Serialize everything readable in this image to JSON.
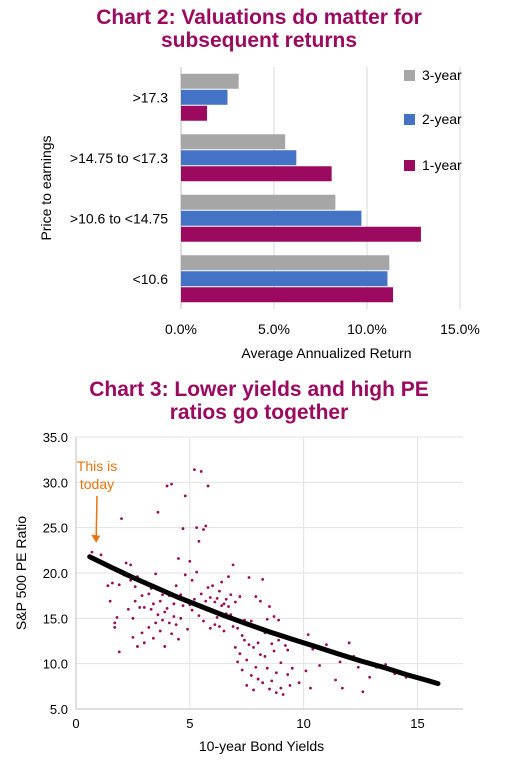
{
  "chart_data": [
    {
      "type": "bar",
      "orientation": "horizontal",
      "title_lines": [
        "Chart 2: Valuations do matter for",
        "subsequent returns"
      ],
      "categories": [
        ">17.3",
        ">14.75 to <17.3",
        ">10.6 to <14.75",
        "<10.6"
      ],
      "series": [
        {
          "name": "3-year",
          "color": "#a6a6a6",
          "values": [
            3.1,
            5.6,
            8.3,
            11.2
          ]
        },
        {
          "name": "2-year",
          "color": "#4472c4",
          "values": [
            2.5,
            6.2,
            9.7,
            11.1
          ]
        },
        {
          "name": "1-year",
          "color": "#9b0a5f",
          "values": [
            1.4,
            8.1,
            12.9,
            11.4
          ]
        }
      ],
      "xlabel": "Average Annualized Return",
      "ylabel": "Price to earnings",
      "xlim": [
        0,
        15
      ],
      "xticks": [
        "0.0%",
        "5.0%",
        "10.0%",
        "15.0%"
      ],
      "grid": true,
      "legend_position": "right"
    },
    {
      "type": "scatter",
      "title_lines": [
        "Chart 3: Lower yields and high PE",
        "ratios go together"
      ],
      "xlabel": "10-year Bond Yields",
      "ylabel": "S&P 500 PE Ratio",
      "xlim": [
        0,
        17
      ],
      "ylim": [
        5,
        35
      ],
      "xticks": [
        "0",
        "5",
        "10",
        "15"
      ],
      "yticks": [
        "5.0",
        "10.0",
        "15.0",
        "20.0",
        "25.0",
        "30.0",
        "35.0"
      ],
      "grid": true,
      "point_color": "#9b0a5f",
      "trend_color": "#000000",
      "annotation": {
        "lines": [
          "This is",
          "today"
        ],
        "color": "#e8730c",
        "target": [
          0.8,
          23.0
        ]
      },
      "trend": [
        [
          0.6,
          21.8
        ],
        [
          1.5,
          20.7
        ],
        [
          2.5,
          19.5
        ],
        [
          3.5,
          18.4
        ],
        [
          4.5,
          17.3
        ],
        [
          5.5,
          16.3
        ],
        [
          6.5,
          15.3
        ],
        [
          7.5,
          14.4
        ],
        [
          8.5,
          13.5
        ],
        [
          9.5,
          12.7
        ],
        [
          10.5,
          11.9
        ],
        [
          11.5,
          11.1
        ],
        [
          12.5,
          10.3
        ],
        [
          13.5,
          9.6
        ],
        [
          14.5,
          8.8
        ],
        [
          15.5,
          8.1
        ],
        [
          15.9,
          7.8
        ]
      ],
      "points": [
        [
          0.7,
          22.3
        ],
        [
          1.1,
          22.0
        ],
        [
          1.4,
          18.6
        ],
        [
          1.5,
          16.9
        ],
        [
          1.6,
          18.9
        ],
        [
          1.7,
          14.0
        ],
        [
          1.7,
          14.5
        ],
        [
          1.8,
          15.1
        ],
        [
          1.9,
          11.3
        ],
        [
          1.9,
          18.7
        ],
        [
          2.0,
          26.0
        ],
        [
          2.1,
          19.8
        ],
        [
          2.2,
          21.1
        ],
        [
          2.3,
          16.0
        ],
        [
          2.4,
          19.2
        ],
        [
          2.4,
          20.9
        ],
        [
          2.5,
          12.9
        ],
        [
          2.5,
          15.0
        ],
        [
          2.6,
          16.9
        ],
        [
          2.6,
          18.5
        ],
        [
          2.7,
          11.9
        ],
        [
          2.7,
          19.6
        ],
        [
          2.8,
          16.2
        ],
        [
          2.9,
          13.4
        ],
        [
          2.9,
          17.5
        ],
        [
          3.0,
          12.3
        ],
        [
          3.0,
          16.2
        ],
        [
          3.1,
          18.7
        ],
        [
          3.2,
          14.0
        ],
        [
          3.2,
          17.7
        ],
        [
          3.3,
          16.0
        ],
        [
          3.3,
          18.3
        ],
        [
          3.4,
          12.8
        ],
        [
          3.4,
          16.6
        ],
        [
          3.5,
          14.5
        ],
        [
          3.5,
          19.9
        ],
        [
          3.6,
          15.4
        ],
        [
          3.6,
          26.7
        ],
        [
          3.7,
          13.6
        ],
        [
          3.7,
          16.9
        ],
        [
          3.8,
          14.8
        ],
        [
          3.8,
          17.6
        ],
        [
          3.9,
          15.7
        ],
        [
          3.9,
          11.9
        ],
        [
          4.0,
          16.1
        ],
        [
          4.0,
          29.6
        ],
        [
          4.1,
          14.5
        ],
        [
          4.1,
          17.5
        ],
        [
          4.2,
          13.3
        ],
        [
          4.2,
          29.8
        ],
        [
          4.3,
          16.6
        ],
        [
          4.3,
          15.2
        ],
        [
          4.4,
          18.6
        ],
        [
          4.4,
          14.3
        ],
        [
          4.5,
          12.7
        ],
        [
          4.5,
          21.6
        ],
        [
          4.6,
          17.6
        ],
        [
          4.6,
          15.0
        ],
        [
          4.7,
          16.4
        ],
        [
          4.7,
          24.9
        ],
        [
          4.8,
          19.8
        ],
        [
          4.8,
          28.5
        ],
        [
          4.9,
          16.8
        ],
        [
          4.9,
          13.8
        ],
        [
          5.0,
          16.5
        ],
        [
          5.0,
          21.3
        ],
        [
          5.1,
          19.2
        ],
        [
          5.1,
          15.9
        ],
        [
          5.2,
          31.4
        ],
        [
          5.2,
          17.1
        ],
        [
          5.3,
          25.0
        ],
        [
          5.3,
          20.1
        ],
        [
          5.4,
          23.5
        ],
        [
          5.4,
          15.3
        ],
        [
          5.5,
          31.2
        ],
        [
          5.5,
          17.7
        ],
        [
          5.6,
          24.8
        ],
        [
          5.6,
          14.7
        ],
        [
          5.7,
          25.2
        ],
        [
          5.7,
          16.9
        ],
        [
          5.8,
          29.6
        ],
        [
          5.8,
          18.4
        ],
        [
          5.9,
          17.3
        ],
        [
          5.9,
          13.9
        ],
        [
          6.0,
          18.6
        ],
        [
          6.0,
          15.7
        ],
        [
          6.1,
          14.3
        ],
        [
          6.1,
          16.8
        ],
        [
          6.2,
          17.2
        ],
        [
          6.2,
          15.1
        ],
        [
          6.3,
          18.0
        ],
        [
          6.3,
          14.1
        ],
        [
          6.4,
          16.4
        ],
        [
          6.4,
          19.0
        ],
        [
          6.5,
          16.6
        ],
        [
          6.5,
          13.6
        ],
        [
          6.6,
          17.1
        ],
        [
          6.6,
          15.5
        ],
        [
          6.7,
          19.6
        ],
        [
          6.7,
          16.3
        ],
        [
          6.8,
          15.4
        ],
        [
          6.8,
          17.6
        ],
        [
          6.9,
          14.1
        ],
        [
          6.9,
          20.9
        ],
        [
          7.0,
          11.8
        ],
        [
          7.0,
          16.8
        ],
        [
          7.1,
          13.9
        ],
        [
          7.1,
          10.2
        ],
        [
          7.2,
          11.1
        ],
        [
          7.2,
          17.4
        ],
        [
          7.3,
          13.1
        ],
        [
          7.3,
          9.3
        ],
        [
          7.4,
          12.6
        ],
        [
          7.4,
          14.8
        ],
        [
          7.5,
          10.4
        ],
        [
          7.5,
          7.6
        ],
        [
          7.6,
          12.1
        ],
        [
          7.6,
          19.5
        ],
        [
          7.7,
          8.7
        ],
        [
          7.7,
          14.7
        ],
        [
          7.8,
          11.8
        ],
        [
          7.8,
          7.1
        ],
        [
          7.9,
          9.6
        ],
        [
          7.9,
          17.4
        ],
        [
          8.0,
          12.3
        ],
        [
          8.0,
          8.3
        ],
        [
          8.1,
          16.9
        ],
        [
          8.1,
          11.0
        ],
        [
          8.2,
          7.9
        ],
        [
          8.2,
          19.3
        ],
        [
          8.3,
          10.8
        ],
        [
          8.3,
          13.4
        ],
        [
          8.4,
          14.9
        ],
        [
          8.4,
          9.5
        ],
        [
          8.5,
          7.2
        ],
        [
          8.5,
          16.3
        ],
        [
          8.6,
          12.2
        ],
        [
          8.6,
          8.1
        ],
        [
          8.7,
          11.4
        ],
        [
          8.7,
          15.2
        ],
        [
          8.8,
          9.0
        ],
        [
          8.8,
          6.8
        ],
        [
          8.9,
          12.6
        ],
        [
          8.9,
          14.8
        ],
        [
          9.0,
          7.3
        ],
        [
          9.0,
          10.1
        ],
        [
          9.1,
          6.6
        ],
        [
          9.2,
          12.0
        ],
        [
          9.3,
          8.8
        ],
        [
          9.3,
          11.5
        ],
        [
          9.4,
          7.6
        ],
        [
          9.5,
          9.5
        ],
        [
          9.6,
          12.6
        ],
        [
          9.8,
          7.9
        ],
        [
          10.1,
          9.2
        ],
        [
          10.2,
          13.2
        ],
        [
          10.3,
          7.3
        ],
        [
          10.4,
          11.6
        ],
        [
          10.7,
          9.8
        ],
        [
          11.0,
          12.1
        ],
        [
          11.4,
          8.2
        ],
        [
          11.6,
          10.2
        ],
        [
          11.7,
          7.3
        ],
        [
          12.0,
          12.3
        ],
        [
          12.2,
          10.8
        ],
        [
          12.4,
          9.6
        ],
        [
          12.6,
          6.9
        ],
        [
          12.9,
          8.5
        ],
        [
          13.2,
          9.6
        ],
        [
          13.6,
          9.9
        ],
        [
          14.0,
          8.9
        ],
        [
          14.5,
          8.5
        ],
        [
          15.1,
          8.3
        ],
        [
          15.6,
          8.0
        ],
        [
          15.9,
          7.9
        ]
      ]
    }
  ]
}
